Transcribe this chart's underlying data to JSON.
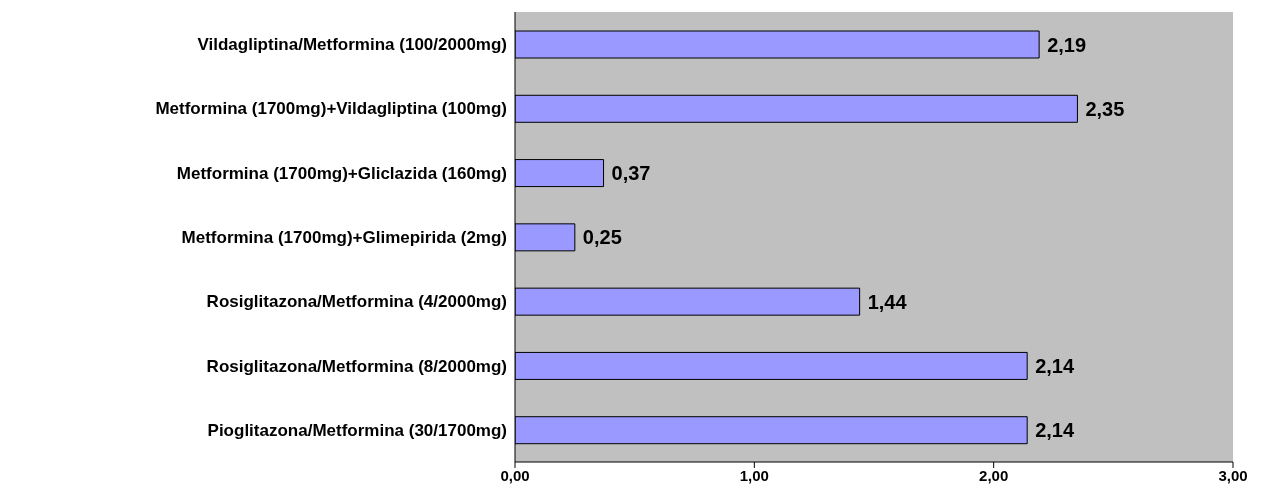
{
  "chart_data": {
    "type": "bar",
    "orientation": "horizontal",
    "categories": [
      "Vildagliptina/Metformina (100/2000mg)",
      "Metformina (1700mg)+Vildagliptina (100mg)",
      "Metformina (1700mg)+Gliclazida (160mg)",
      "Metformina (1700mg)+Glimepirida (2mg)",
      "Rosiglitazona/Metformina (4/2000mg)",
      "Rosiglitazona/Metformina (8/2000mg)",
      "Pioglitazona/Metformina (30/1700mg)"
    ],
    "values": [
      2.19,
      2.35,
      0.37,
      0.25,
      1.44,
      2.14,
      2.14
    ],
    "value_labels": [
      "2,19",
      "2,35",
      "0,37",
      "0,25",
      "1,44",
      "2,14",
      "2,14"
    ],
    "color": "#9999ff",
    "xlim": [
      0,
      3
    ],
    "xticks": [
      {
        "value": 0,
        "label": "0,00"
      },
      {
        "value": 1,
        "label": "1,00"
      },
      {
        "value": 2,
        "label": "2,00"
      },
      {
        "value": 3,
        "label": "3,00"
      }
    ],
    "grid": false
  }
}
